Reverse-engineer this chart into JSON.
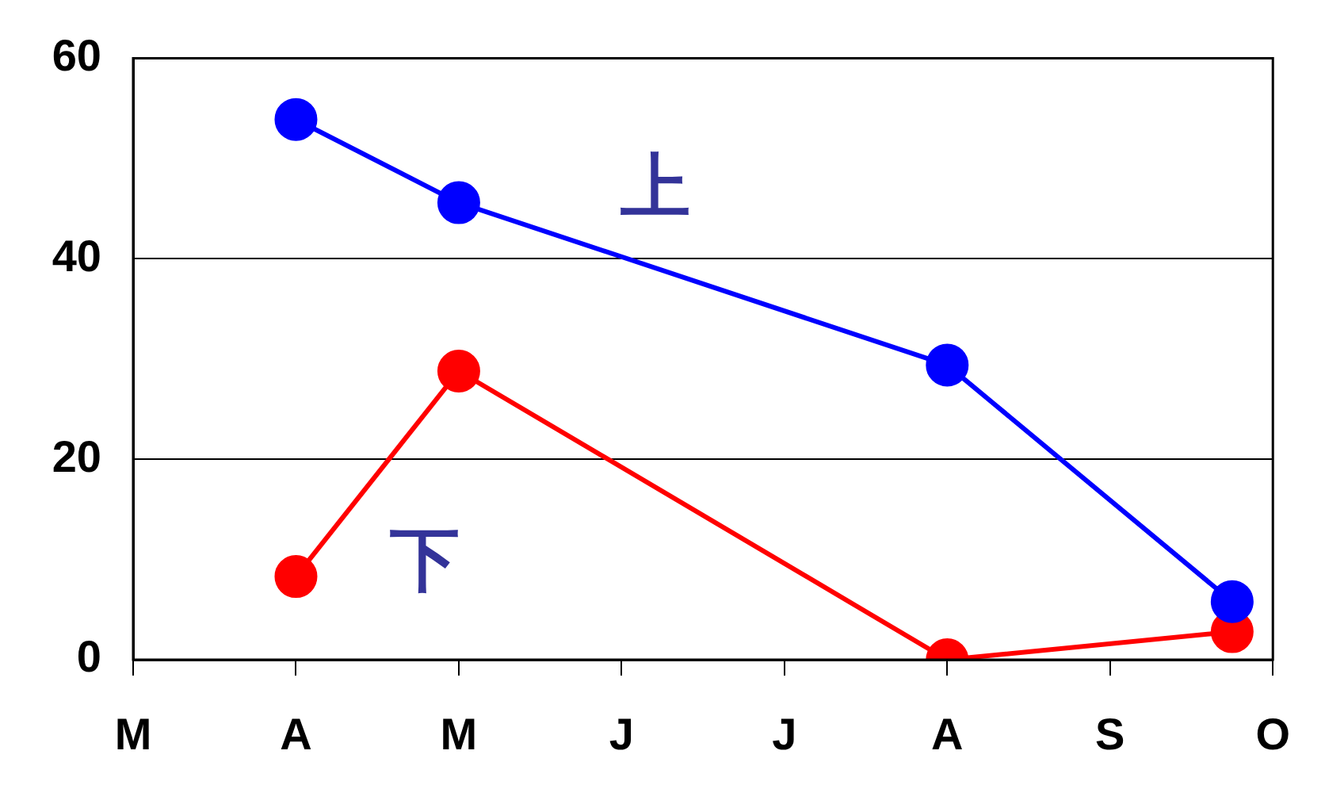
{
  "chart_data": {
    "type": "line",
    "categories": [
      "M",
      null,
      null,
      null,
      "A",
      null,
      null,
      null,
      "M",
      null,
      null,
      null,
      "J",
      null,
      null,
      null,
      "J",
      null,
      null,
      null,
      "A",
      null,
      null,
      null,
      "S",
      null,
      null,
      null,
      "O"
    ],
    "series": [
      {
        "name": "上",
        "color": "#0000ff",
        "values": [
          null,
          null,
          null,
          null,
          53.9,
          null,
          null,
          null,
          45.6,
          null,
          null,
          null,
          null,
          null,
          null,
          null,
          null,
          null,
          null,
          null,
          29.4,
          null,
          null,
          null,
          null,
          null,
          null,
          5.8,
          null
        ]
      },
      {
        "name": "下",
        "color": "#ff0000",
        "values": [
          null,
          null,
          null,
          null,
          8.3,
          null,
          null,
          null,
          28.8,
          null,
          null,
          null,
          null,
          null,
          null,
          null,
          null,
          null,
          null,
          null,
          0,
          null,
          null,
          null,
          null,
          null,
          null,
          2.8,
          null
        ]
      }
    ],
    "ylim": [
      0,
      60
    ],
    "yticks": [
      0,
      20,
      40,
      60
    ],
    "grid": "y",
    "legend": false,
    "marker": "circle",
    "line_style": "solid"
  }
}
